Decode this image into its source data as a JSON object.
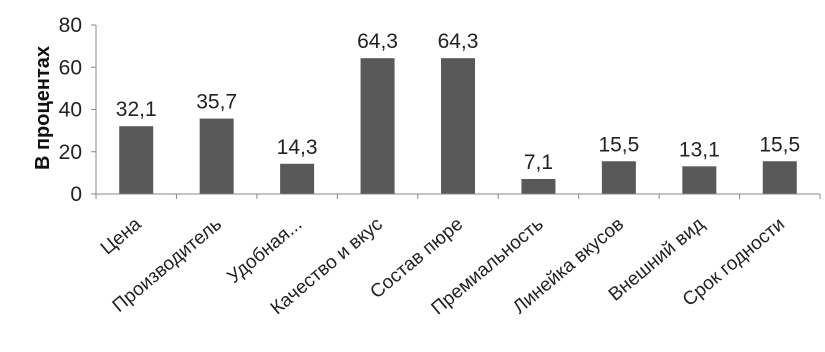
{
  "chart_data": {
    "type": "bar",
    "title": "",
    "xlabel": "",
    "ylabel": "В процентах",
    "ylim": [
      0,
      80
    ],
    "yticks": [
      0,
      20,
      40,
      60,
      80
    ],
    "grid": false,
    "legend": "none",
    "bar_color": "#595959",
    "axis_color": "#888888",
    "categories": [
      "Цена",
      "Производитель",
      "Удобная...",
      "Качество и вкус",
      "Состав пюре",
      "Премиальность",
      "Линейка вкусов",
      "Внешний вид",
      "Срок годности"
    ],
    "values": [
      32.1,
      35.7,
      14.3,
      64.3,
      64.3,
      7.1,
      15.5,
      13.1,
      15.5
    ],
    "value_labels": [
      "32,1",
      "35,7",
      "14,3",
      "64,3",
      "64,3",
      "7,1",
      "15,5",
      "13,1",
      "15,5"
    ]
  }
}
